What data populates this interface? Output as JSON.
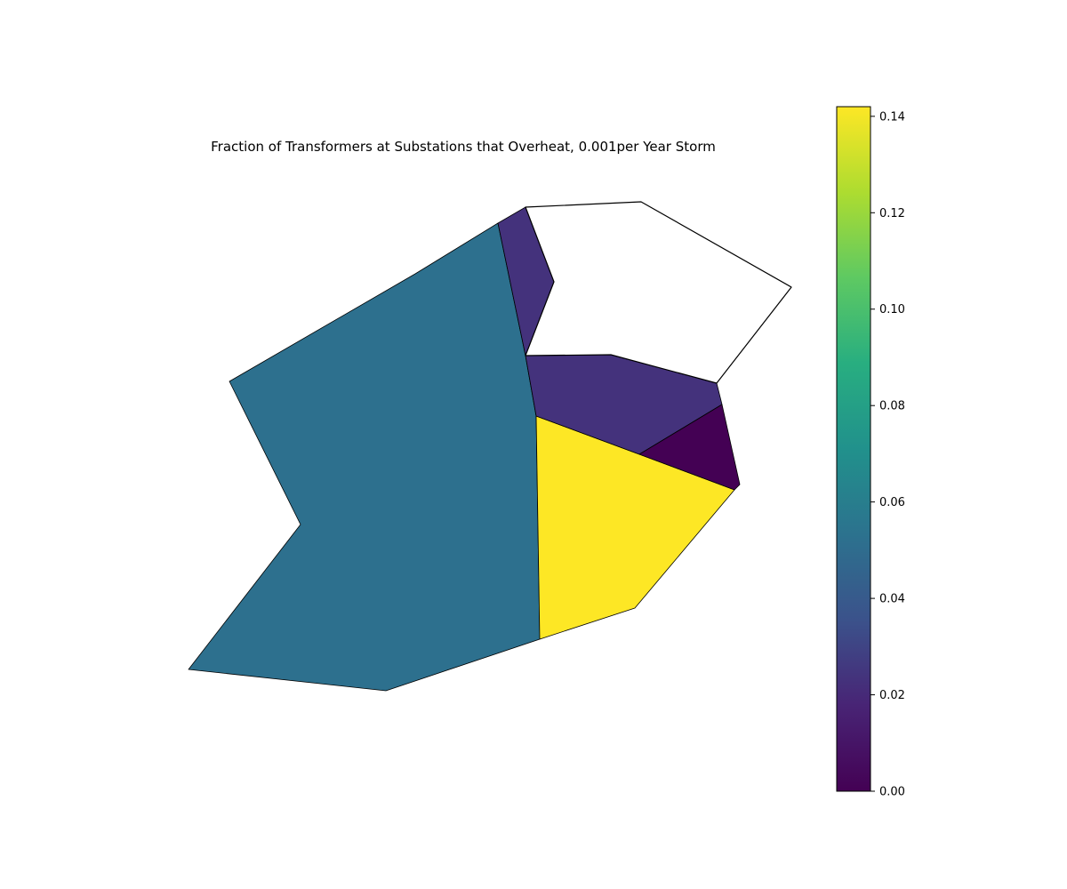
{
  "map": {
    "title": "Fraction of Transformers at Substations that Overheat, 0.001per Year Storm",
    "colormap": "viridis",
    "no_data_color": "#ffffff",
    "regions": [
      {
        "id": "west",
        "value": 0.052
      },
      {
        "id": "south-center",
        "value": 0.142
      },
      {
        "id": "north-strip",
        "value": 0.023
      },
      {
        "id": "center-east",
        "value": 0.023
      },
      {
        "id": "east-triangle",
        "value": 0.0
      },
      {
        "id": "northeast",
        "value": null
      }
    ]
  },
  "colorbar": {
    "min": 0.0,
    "max": 0.142,
    "ticks": [
      {
        "value": 0.0,
        "label": "0.00"
      },
      {
        "value": 0.02,
        "label": "0.02"
      },
      {
        "value": 0.04,
        "label": "0.04"
      },
      {
        "value": 0.06,
        "label": "0.06"
      },
      {
        "value": 0.08,
        "label": "0.08"
      },
      {
        "value": 0.1,
        "label": "0.10"
      },
      {
        "value": 0.12,
        "label": "0.12"
      },
      {
        "value": 0.14,
        "label": "0.14"
      }
    ]
  }
}
